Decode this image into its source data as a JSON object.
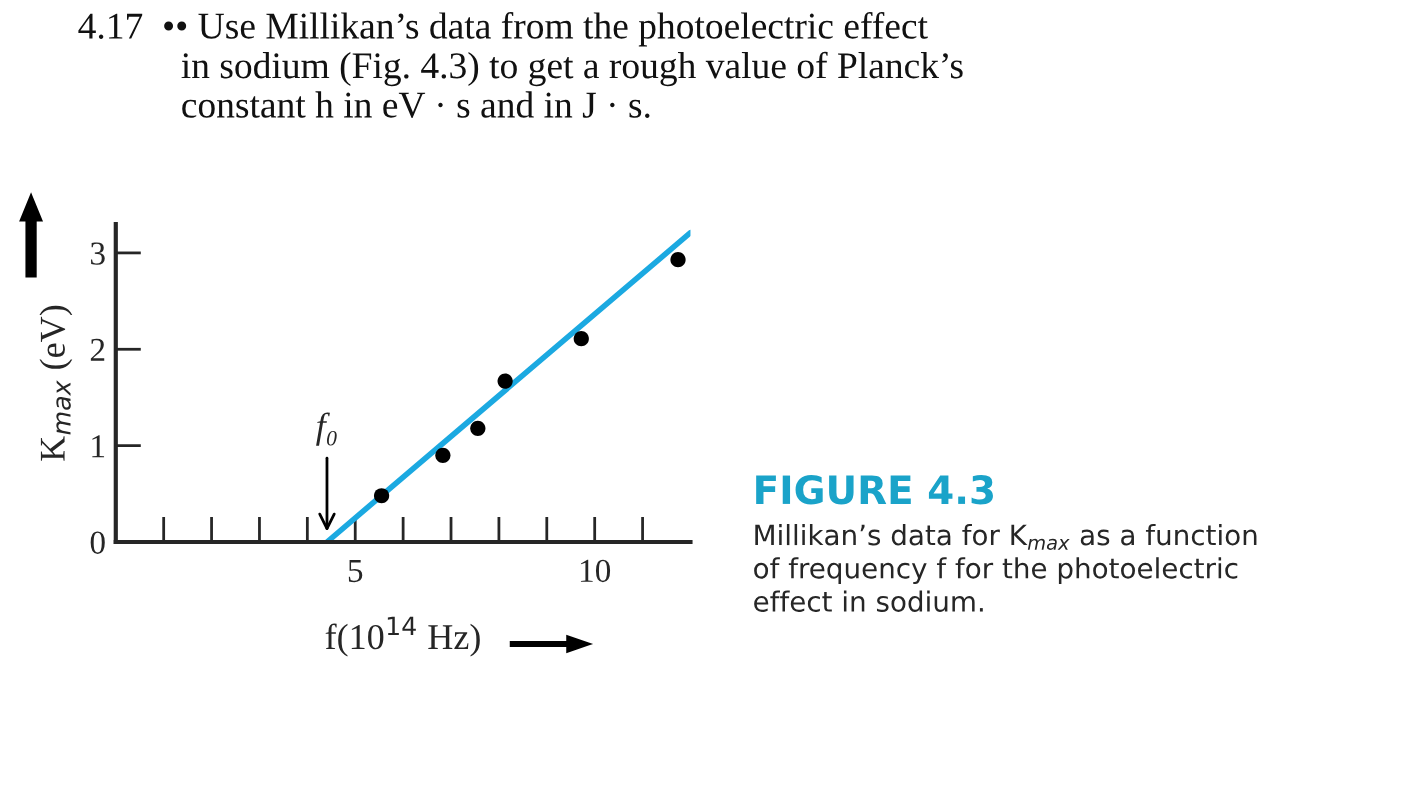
{
  "chart_data": {
    "type": "scatter",
    "title": "4.17  •• Use Millikan’s data from the photoelectric effect\n           in sodium (Fig. 4.3) to get a rough value of Planck’s\n           constant h in eV · s and in J · s.",
    "xlabel": "f(10$^{14}$ Hz)",
    "ylabel": "K$_{max}$ (eV)",
    "series": [
      {
        "color": "#000000",
        "x": [
          5.55,
          6.83,
          7.56,
          8.13,
          9.72,
          11.74
        ],
        "values": [
          0.48,
          0.9,
          1.18,
          1.67,
          2.11,
          2.93
        ]
      },
      {
        "type": "line",
        "color": "#1ba9e1",
        "x": [
          4.41,
          12
        ],
        "values": [
          0,
          3.21
        ]
      }
    ],
    "xlim": [
      0,
      12
    ],
    "ylim": [
      0,
      3.3
    ],
    "xticks": [
      {
        "value": 1,
        "label": null
      },
      {
        "value": 2,
        "label": null
      },
      {
        "value": 3,
        "label": null
      },
      {
        "value": 4,
        "label": null
      },
      5,
      {
        "value": 6,
        "label": null
      },
      {
        "value": 7,
        "label": null
      },
      {
        "value": 8,
        "label": null
      },
      {
        "value": 9,
        "label": null
      },
      10,
      {
        "value": 11,
        "label": null
      }
    ],
    "yticks": [
      0,
      1,
      2,
      3
    ],
    "grid": false,
    "legend": false,
    "annotations": [
      {
        "text": "f₀",
        "x": 4.41,
        "y": 0
      },
      "FIGURE 4.3",
      "Millikan’s data for K$_{max}$ as a function\nof frequency f for the photoelectric\neffect in sodium."
    ]
  }
}
